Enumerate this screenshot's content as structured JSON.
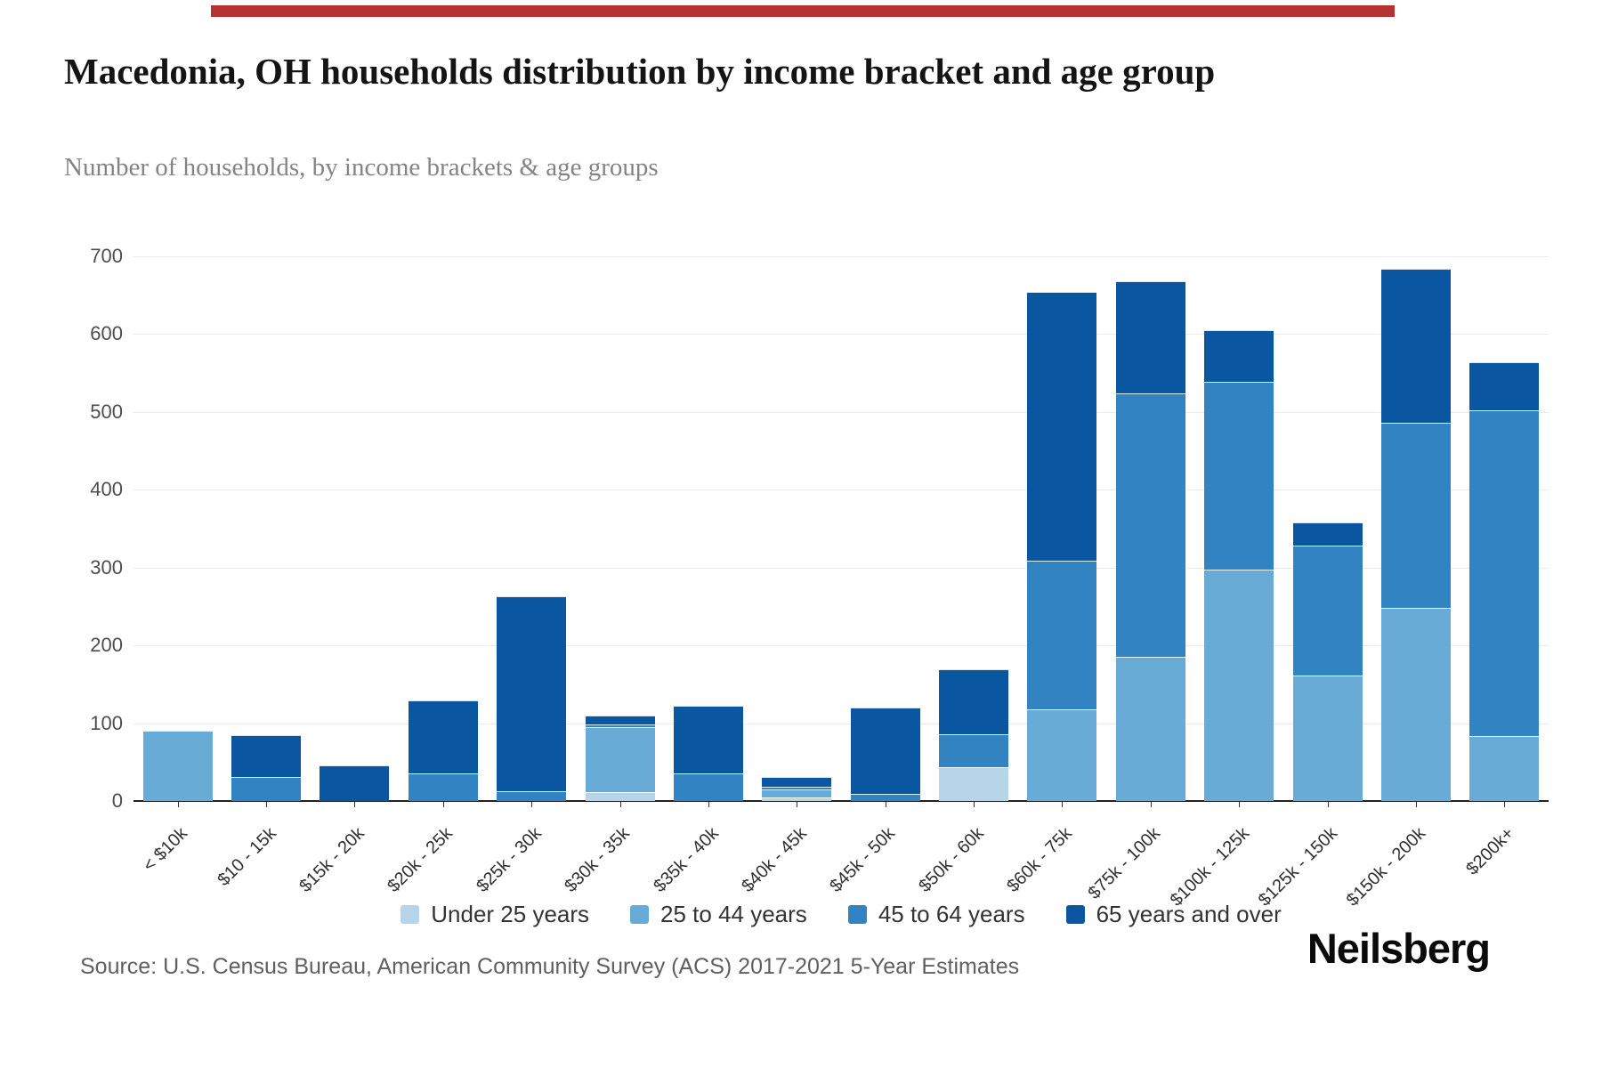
{
  "top_bar": {
    "color": "#b43332"
  },
  "header": {
    "title": "Macedonia, OH households distribution by income bracket and age group",
    "subtitle": "Number of households, by income brackets & age groups"
  },
  "chart_data": {
    "type": "bar",
    "stacked": true,
    "title": "Macedonia, OH households distribution by income bracket and age group",
    "subtitle": "Number of households, by income brackets & age groups",
    "categories": [
      "< $10k",
      "$10 - 15k",
      "$15k - 20k",
      "$20k - 25k",
      "$25k - 30k",
      "$30k - 35k",
      "$35k - 40k",
      "$40k - 45k",
      "$45k - 50k",
      "$50k - 60k",
      "$60k - 75k",
      "$75k - 100k",
      "$100k - 125k",
      "$125k - 150k",
      "$150k - 200k",
      "$200k+"
    ],
    "series": [
      {
        "name": "Under 25 years",
        "color": "#b6d5e8",
        "values": [
          0,
          0,
          0,
          0,
          0,
          11,
          0,
          5,
          0,
          44,
          0,
          0,
          0,
          0,
          0,
          0
        ]
      },
      {
        "name": "25 to 44 years",
        "color": "#68abd7",
        "values": [
          90,
          0,
          0,
          0,
          0,
          83,
          0,
          10,
          0,
          0,
          118,
          185,
          297,
          161,
          248,
          84
        ]
      },
      {
        "name": "45 to 64 years",
        "color": "#3183c2",
        "values": [
          0,
          31,
          0,
          36,
          13,
          4,
          35,
          3,
          9,
          42,
          191,
          338,
          241,
          167,
          238,
          419
        ]
      },
      {
        "name": "65 years and over",
        "color": "#0b56a0",
        "values": [
          0,
          54,
          46,
          94,
          250,
          12,
          87,
          13,
          111,
          83,
          345,
          144,
          66,
          30,
          198,
          62
        ]
      }
    ],
    "totals": [
      90,
      85,
      46,
      130,
      263,
      110,
      122,
      31,
      120,
      169,
      654,
      667,
      604,
      358,
      684,
      565
    ],
    "ylim": [
      0,
      700
    ],
    "yticks": [
      0,
      100,
      200,
      300,
      400,
      500,
      600,
      700
    ],
    "grid": true,
    "legend_position": "bottom"
  },
  "footer": {
    "source": "Source: U.S. Census Bureau, American Community Survey (ACS) 2017-2021 5-Year Estimates",
    "brand": "Neilsberg"
  }
}
